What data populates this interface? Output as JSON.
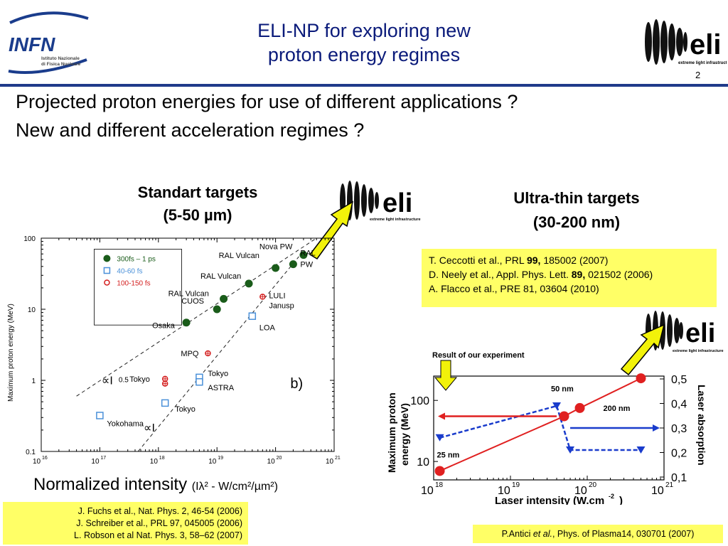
{
  "header": {
    "title_line1": "ELI-NP for exploring new",
    "title_line2": "proton energy regimes",
    "slide_number": "2",
    "infn_logo": {
      "wordmark": "INFN",
      "sub1": "Istituto Nazionale",
      "sub2": "di Fisica Nucleare"
    },
    "eli_logo": {
      "wordmark": "eli",
      "sub": "extreme light infrastructure"
    }
  },
  "questions": {
    "line1": "Projected proton energies for use of different applications ?",
    "line2": "New and different acceleration regimes ?"
  },
  "standard_targets": {
    "line1": "Standart targets",
    "line2": "(5-50 µm)"
  },
  "ultrathin_targets": {
    "line1": "Ultra-thin targets",
    "line2": "(30-200 nm)"
  },
  "refs_right": [
    {
      "pre": "T. Ceccotti et al., PRL ",
      "bold": "99,",
      "post": " 185002 (2007)"
    },
    {
      "pre": "D. Neely et al., Appl. Phys. Lett. ",
      "bold": "89,",
      "post": " 021502 (2006)"
    },
    {
      "pre": "A. Flacco et al., PRE 81, 03604 (2010)",
      "bold": "",
      "post": ""
    }
  ],
  "normalized_intensity": {
    "main": "Normalized intensity ",
    "unit": "(Iλ² - W/cm²/µm²)"
  },
  "refs_left": [
    "J. Fuchs et al., Nat. Phys.  2, 46-54 (2006)",
    "J. Schreiber et al., PRL 97, 045005 (2006)",
    "L. Robson et al Nat. Phys. 3, 58–62 (2007)"
  ],
  "ref_bottom_right": {
    "pre": "P.Antici ",
    "italic": "et al.",
    "post": ", Phys. of Plasma14, 030701 (2007)"
  },
  "colors": {
    "header_blue": "#1f3a8a",
    "highlight": "#ffff66",
    "arrow": "#f2f20a"
  },
  "chart_data": [
    {
      "type": "scatter",
      "xscale": "log",
      "yscale": "log",
      "xlim": [
        1e+16,
        1e+21
      ],
      "ylim": [
        0.1,
        100
      ],
      "x_tick_labels": [
        "10",
        "10",
        "10",
        "10",
        "10",
        "10"
      ],
      "x_tick_exponents": [
        "16",
        "17",
        "18",
        "19",
        "20",
        "21"
      ],
      "y_tick_labels": [
        "0.1",
        "1",
        "10",
        "100"
      ],
      "ylabel": "Maximum proton energy (MeV)",
      "panel_label": "b)",
      "legend": [
        {
          "name": "300fs – 1 ps",
          "color": "#1a5c1a",
          "marker": "circle"
        },
        {
          "name": "40-60 fs",
          "color": "#4a90d9",
          "marker": "square"
        },
        {
          "name": "100-150 fs",
          "color": "#d42020",
          "marker": "cross"
        }
      ],
      "series": [
        {
          "name": "300fs – 1 ps",
          "points": [
            {
              "x": 3e+18,
              "y": 6.5,
              "label": "Osaka"
            },
            {
              "x": 1e+19,
              "y": 10,
              "label": "CUOS"
            },
            {
              "x": 1.3e+19,
              "y": 14,
              "label": "RAL Vulcan"
            },
            {
              "x": 3.5e+19,
              "y": 23,
              "label": "RAL Vulcan"
            },
            {
              "x": 1e+20,
              "y": 38,
              "label": "RAL Vulcan"
            },
            {
              "x": 2e+20,
              "y": 43,
              "label": "RAL PW"
            },
            {
              "x": 3e+20,
              "y": 58,
              "label": "Nova PW"
            }
          ]
        },
        {
          "name": "40-60 fs",
          "points": [
            {
              "x": 1e+17,
              "y": 0.32,
              "label": "Yokohama"
            },
            {
              "x": 1.3e+18,
              "y": 0.48,
              "label": "Tokyo"
            },
            {
              "x": 5e+18,
              "y": 1.1,
              "label": "Tokyo"
            },
            {
              "x": 5e+18,
              "y": 0.95,
              "label": "ASTRA"
            },
            {
              "x": 4e+19,
              "y": 8,
              "label": "LOA"
            }
          ]
        },
        {
          "name": "100-150 fs",
          "points": [
            {
              "x": 1.3e+18,
              "y": 1.05,
              "label": "Tokyo"
            },
            {
              "x": 1.3e+18,
              "y": 0.9,
              "label": ""
            },
            {
              "x": 7e+18,
              "y": 2.4,
              "label": "MPQ"
            },
            {
              "x": 6e+19,
              "y": 15,
              "label": "LULI Janusp"
            }
          ]
        }
      ],
      "fit_labels": [
        "∝I0.5",
        "∝I"
      ]
    },
    {
      "type": "line",
      "title": "Result of our experiment",
      "xlabel": "Laser intensity (W.cm-2)",
      "ylabel": "Maximum proton energy (MeV)",
      "y2label": "Laser absorption",
      "xscale": "log",
      "yscale": "log",
      "xlim": [
        1e+18,
        1e+21
      ],
      "ylim": [
        5,
        250
      ],
      "y2lim": [
        0.1,
        0.5
      ],
      "x_tick_labels": [
        "10",
        "10",
        "10",
        "10"
      ],
      "x_tick_exponents": [
        "18",
        "19",
        "20",
        "21"
      ],
      "y_tick_labels": [
        "10",
        "100"
      ],
      "y2_tick_labels": [
        "0,1",
        "0,2",
        "0,3",
        "0,4",
        "0,5"
      ],
      "series": [
        {
          "name": "Maximum proton energy",
          "color": "#e02020",
          "x": [
            1.2e+18,
            5e+19,
            8e+19,
            5e+20
          ],
          "y": [
            7,
            55,
            75,
            230
          ]
        },
        {
          "name": "Laser absorption",
          "color": "#1a3ccc",
          "x": [
            1.2e+18,
            4e+19,
            6e+19,
            5e+20
          ],
          "y": [
            0.26,
            0.39,
            0.21,
            0.21
          ]
        }
      ],
      "annotations": [
        "50 nm",
        "25 nm",
        "200 nm"
      ]
    }
  ]
}
